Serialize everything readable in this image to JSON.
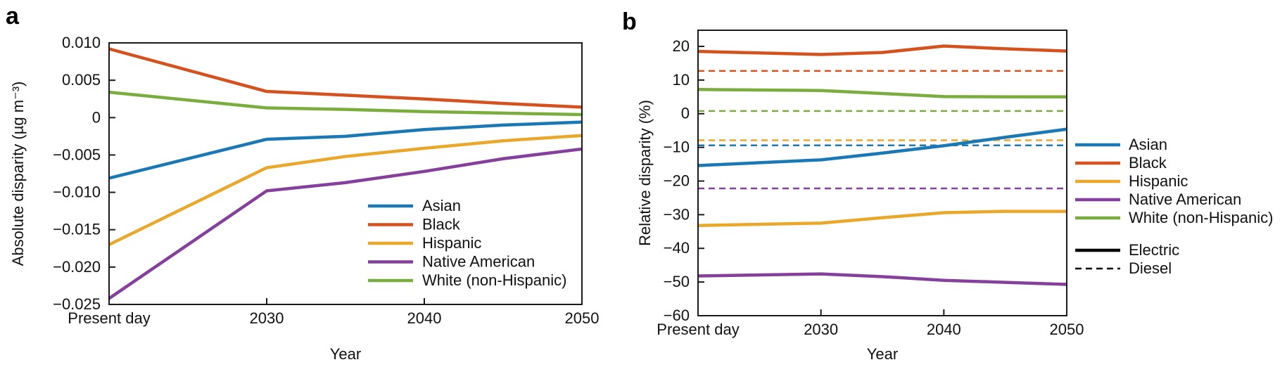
{
  "figure": {
    "background": "#ffffff",
    "panel_a_letter": "a",
    "panel_b_letter": "b"
  },
  "palette": {
    "asian_blue": "#1a78b5",
    "black_red": "#d4521d",
    "hispanic_yellow": "#e9a82a",
    "native_american_purple": "#84409b",
    "white_green": "#7aad3d",
    "axis": "#1a1a1a",
    "legend_line_black": "#000000"
  },
  "chart_data": [
    {
      "panel_label": "a",
      "type": "line",
      "xlabel": "Year",
      "ylabel": "Absolute disparity (µg m⁻³)",
      "x": [
        0,
        1,
        1.5,
        2,
        2.5,
        3
      ],
      "x_ticks": [
        {
          "pos": 0,
          "label": "Present day"
        },
        {
          "pos": 1,
          "label": "2030"
        },
        {
          "pos": 2,
          "label": "2040"
        },
        {
          "pos": 3,
          "label": "2050"
        }
      ],
      "ylim": [
        -0.025,
        0.01
      ],
      "y_ticks": [
        {
          "v": 0.01,
          "label": "0.010"
        },
        {
          "v": 0.005,
          "label": "0.005"
        },
        {
          "v": 0,
          "label": "0"
        },
        {
          "v": -0.005,
          "label": "−0.005"
        },
        {
          "v": -0.01,
          "label": "−0.010"
        },
        {
          "v": -0.015,
          "label": "−0.015"
        },
        {
          "v": -0.02,
          "label": "−0.020"
        },
        {
          "v": -0.025,
          "label": "−0.025"
        }
      ],
      "series": [
        {
          "name": "Black",
          "color": "#d4521d",
          "style": "solid",
          "values": [
            0.0092,
            0.0035,
            0.003,
            0.0025,
            0.0019,
            0.0014
          ]
        },
        {
          "name": "White (non-Hispanic)",
          "color": "#7aad3d",
          "style": "solid",
          "values": [
            0.0034,
            0.0013,
            0.0011,
            0.0008,
            0.0006,
            0.0004
          ]
        },
        {
          "name": "Asian",
          "color": "#1a78b5",
          "style": "solid",
          "values": [
            -0.0081,
            -0.0029,
            -0.0025,
            -0.0016,
            -0.001,
            -0.0006
          ]
        },
        {
          "name": "Hispanic",
          "color": "#e9a82a",
          "style": "solid",
          "values": [
            -0.017,
            -0.0067,
            -0.0052,
            -0.0041,
            -0.0031,
            -0.0024
          ]
        },
        {
          "name": "Native American",
          "color": "#84409b",
          "style": "solid",
          "values": [
            -0.0242,
            -0.0098,
            -0.0087,
            -0.0072,
            -0.0055,
            -0.0042
          ]
        }
      ],
      "legend_items": [
        {
          "label": "Asian",
          "color": "#1a78b5"
        },
        {
          "label": "Black",
          "color": "#d4521d"
        },
        {
          "label": "Hispanic",
          "color": "#e9a82a"
        },
        {
          "label": "Native American",
          "color": "#84409b"
        },
        {
          "label": "White (non-Hispanic)",
          "color": "#7aad3d"
        }
      ]
    },
    {
      "panel_label": "b",
      "type": "line",
      "xlabel": "Year",
      "ylabel": "Relative disparity (%)",
      "x": [
        0,
        1,
        1.5,
        2,
        2.5,
        3
      ],
      "x_ticks": [
        {
          "pos": 0,
          "label": "Present day"
        },
        {
          "pos": 1,
          "label": "2030"
        },
        {
          "pos": 2,
          "label": "2040"
        },
        {
          "pos": 3,
          "label": "2050"
        }
      ],
      "ylim": [
        -60,
        24.8
      ],
      "y_ticks": [
        {
          "v": 20,
          "label": "20"
        },
        {
          "v": 10,
          "label": "10"
        },
        {
          "v": 0,
          "label": "0"
        },
        {
          "v": -10,
          "label": "−10"
        },
        {
          "v": -20,
          "label": "−20"
        },
        {
          "v": -30,
          "label": "−30"
        },
        {
          "v": -40,
          "label": "−40"
        },
        {
          "v": -50,
          "label": "−50"
        },
        {
          "v": -60,
          "label": "−60"
        }
      ],
      "series": [
        {
          "name": "Black (Diesel)",
          "color": "#d4521d",
          "style": "dashed",
          "x": [
            0,
            3
          ],
          "values": [
            12.7,
            12.7
          ]
        },
        {
          "name": "White (non-Hispanic) (Diesel)",
          "color": "#7aad3d",
          "style": "dashed",
          "x": [
            0,
            3
          ],
          "values": [
            0.8,
            0.8
          ]
        },
        {
          "name": "Hispanic (Diesel)",
          "color": "#e9a82a",
          "style": "dashed",
          "x": [
            0,
            3
          ],
          "values": [
            -7.9,
            -7.9
          ]
        },
        {
          "name": "Asian (Diesel)",
          "color": "#1a78b5",
          "style": "dashed",
          "x": [
            0,
            3
          ],
          "values": [
            -9.4,
            -9.4
          ]
        },
        {
          "name": "Native American (Diesel)",
          "color": "#84409b",
          "style": "dashed",
          "x": [
            0,
            3
          ],
          "values": [
            -22.2,
            -22.2
          ]
        },
        {
          "name": "Black (Electric)",
          "color": "#d4521d",
          "style": "solid",
          "values": [
            18.5,
            17.6,
            18.2,
            20.1,
            19.3,
            18.6
          ]
        },
        {
          "name": "White (non-Hispanic) (Electric)",
          "color": "#7aad3d",
          "style": "solid",
          "values": [
            7.2,
            6.9,
            6.0,
            5.1,
            5.0,
            5.0
          ]
        },
        {
          "name": "Asian (Electric)",
          "color": "#1a78b5",
          "style": "solid",
          "values": [
            -15.4,
            -13.7,
            -11.7,
            -9.5,
            -7.0,
            -4.6
          ]
        },
        {
          "name": "Hispanic (Electric)",
          "color": "#e9a82a",
          "style": "solid",
          "values": [
            -33.2,
            -32.5,
            -30.9,
            -29.4,
            -29.0,
            -29.0
          ]
        },
        {
          "name": "Native American (Electric)",
          "color": "#84409b",
          "style": "solid",
          "values": [
            -48.2,
            -47.6,
            -48.4,
            -49.5,
            -50.1,
            -50.7
          ]
        }
      ],
      "legend_items": [
        {
          "label": "Asian",
          "color": "#1a78b5"
        },
        {
          "label": "Black",
          "color": "#d4521d"
        },
        {
          "label": "Hispanic",
          "color": "#e9a82a"
        },
        {
          "label": "Native American",
          "color": "#84409b"
        },
        {
          "label": "White (non-Hispanic)",
          "color": "#7aad3d"
        }
      ],
      "style_legend_items": [
        {
          "label": "Electric",
          "style": "solid"
        },
        {
          "label": "Diesel",
          "style": "dashed"
        }
      ]
    }
  ]
}
